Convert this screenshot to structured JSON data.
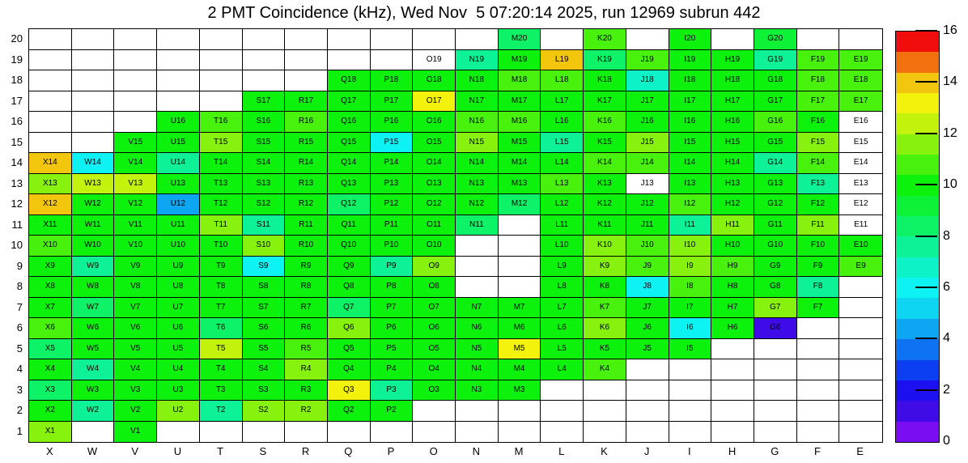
{
  "chart_data": {
    "type": "heatmap",
    "title": "2 PMT Coincidence (kHz), Wed Nov  5 07:20:14 2025, run 12969 subrun 442",
    "columns": [
      "X",
      "W",
      "V",
      "U",
      "T",
      "S",
      "R",
      "Q",
      "P",
      "O",
      "N",
      "M",
      "L",
      "K",
      "J",
      "I",
      "H",
      "G",
      "F",
      "E"
    ],
    "rows": [
      20,
      19,
      18,
      17,
      16,
      15,
      14,
      13,
      12,
      11,
      10,
      9,
      8,
      7,
      6,
      5,
      4,
      3,
      2,
      1
    ],
    "zmin": 0,
    "zmax": 16,
    "cell_label_rule": "column letter + row number (e.g. X14); white cells with a label have value 0; blank cells have no data",
    "values": [
      [
        null,
        null,
        null,
        null,
        null,
        null,
        null,
        null,
        null,
        null,
        null,
        8.4,
        null,
        10.8,
        null,
        10,
        null,
        9.2,
        null,
        null
      ],
      [
        null,
        null,
        null,
        null,
        null,
        null,
        null,
        null,
        null,
        0,
        7.6,
        10,
        14,
        8.4,
        10.8,
        10,
        10,
        7.6,
        10.8,
        10.8
      ],
      [
        null,
        null,
        null,
        null,
        null,
        null,
        null,
        10,
        10,
        10,
        10,
        10.8,
        10.8,
        10,
        6.8,
        10,
        10,
        10,
        10.8,
        10.8
      ],
      [
        null,
        null,
        null,
        null,
        null,
        10,
        10,
        10,
        10,
        13.2,
        10,
        10,
        10,
        10,
        10,
        10,
        10,
        10,
        10.8,
        10.8
      ],
      [
        null,
        null,
        null,
        10,
        10.8,
        10,
        10.8,
        10,
        10,
        10,
        10.8,
        10.8,
        10,
        10.8,
        10,
        10,
        10,
        10.8,
        10,
        0
      ],
      [
        null,
        null,
        10,
        10,
        11.6,
        10,
        10,
        10,
        6,
        10,
        11.6,
        10,
        7.6,
        10,
        11.6,
        10,
        10,
        10,
        11.6,
        0
      ],
      [
        14,
        6,
        10,
        7.6,
        10,
        10,
        10,
        10,
        10,
        10,
        10,
        10,
        10,
        10.8,
        10.8,
        10,
        10,
        7.6,
        10.8,
        0
      ],
      [
        11.6,
        12.4,
        12.4,
        10,
        10,
        10,
        10,
        10,
        10,
        10,
        10,
        10,
        10.8,
        10,
        0,
        10,
        10,
        10,
        7.6,
        0
      ],
      [
        14,
        10,
        10,
        4.4,
        10,
        10,
        10,
        8.4,
        10,
        10,
        10,
        8.4,
        10,
        10,
        10,
        10.8,
        10,
        10,
        10,
        0
      ],
      [
        10,
        10,
        10,
        10,
        11.6,
        7.6,
        10,
        10,
        10,
        10,
        8.4,
        null,
        10,
        10,
        10,
        7.6,
        11.6,
        10,
        11.6,
        0
      ],
      [
        10.8,
        10,
        10,
        10,
        10,
        11.6,
        10,
        10,
        10,
        10,
        null,
        null,
        10,
        11.6,
        10.8,
        11.6,
        10,
        10,
        10,
        10
      ],
      [
        10,
        7.6,
        10,
        10,
        10,
        6,
        10,
        10,
        7.6,
        11.6,
        null,
        null,
        10,
        11.6,
        10.8,
        11.6,
        10.8,
        10,
        10,
        10.8
      ],
      [
        10,
        10,
        10,
        10,
        10,
        10,
        10,
        10,
        10,
        10,
        null,
        null,
        10,
        10,
        6,
        10.8,
        10,
        10,
        7.6,
        null
      ],
      [
        10,
        8.4,
        10,
        10,
        10,
        10,
        10,
        8.4,
        10,
        10,
        10,
        10,
        10,
        10.8,
        10,
        10,
        10,
        11.6,
        10,
        null
      ],
      [
        10.8,
        10,
        10,
        10,
        8.4,
        10,
        10,
        11.6,
        10,
        10,
        10,
        10,
        10,
        11.6,
        10,
        6,
        10,
        1.2,
        null,
        null
      ],
      [
        8.4,
        10,
        10,
        10,
        12.4,
        10,
        10.8,
        10,
        10,
        10,
        10,
        13.2,
        10,
        10,
        10,
        10,
        null,
        null,
        null,
        null
      ],
      [
        10,
        7.6,
        10,
        10,
        10,
        10,
        11.6,
        10,
        10,
        10,
        10,
        10,
        10,
        10.8,
        null,
        null,
        null,
        null,
        null,
        null
      ],
      [
        8.4,
        10,
        10,
        10,
        10,
        10,
        10,
        13.2,
        7.6,
        10,
        10,
        10,
        null,
        null,
        null,
        null,
        null,
        null,
        null,
        null
      ],
      [
        10,
        7.6,
        10,
        11.6,
        7.6,
        11.6,
        11.6,
        10,
        10,
        null,
        null,
        null,
        null,
        null,
        null,
        null,
        null,
        null,
        null,
        null
      ],
      [
        11.6,
        null,
        10,
        null,
        null,
        null,
        null,
        null,
        null,
        null,
        null,
        null,
        null,
        null,
        null,
        null,
        null,
        null,
        null,
        null
      ]
    ],
    "palette": [
      "#7a0df2",
      "#3f0ce8",
      "#1c10f0",
      "#0d3ff2",
      "#0d73f2",
      "#0da6f2",
      "#0dd5f2",
      "#0df2f2",
      "#0df2c6",
      "#0df296",
      "#0df266",
      "#0df236",
      "#0df20d",
      "#49f20d",
      "#86f20d",
      "#c3f20d",
      "#f2f20d",
      "#f2c60d",
      "#f2700d",
      "#f20d0d"
    ],
    "colorbar": {
      "ticks": [
        0,
        2,
        4,
        6,
        8,
        10,
        12,
        14,
        16
      ],
      "position": "right",
      "band_width": 0.8
    },
    "empty_color": "#ffffff",
    "grid_line_color": "#000000"
  }
}
